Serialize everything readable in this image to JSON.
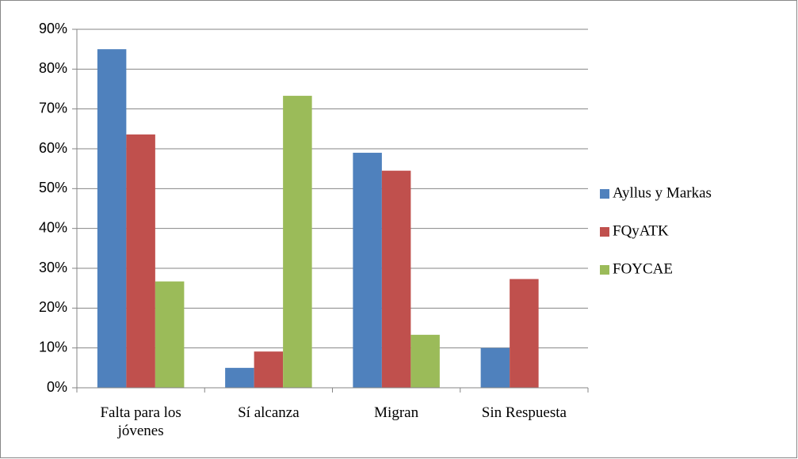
{
  "chart_data": {
    "type": "bar",
    "categories": [
      "Falta para los jóvenes",
      "Sí alcanza",
      "Migran",
      "Sin Respuesta"
    ],
    "series": [
      {
        "name": "Ayllus y Markas",
        "color": "#4f81bd",
        "values": [
          85,
          5,
          59,
          10
        ]
      },
      {
        "name": "FQyATK",
        "color": "#c0504d",
        "values": [
          63.6,
          9.1,
          54.5,
          27.3
        ]
      },
      {
        "name": "FOYCAE",
        "color": "#9bbb59",
        "values": [
          26.7,
          73.3,
          13.3,
          0
        ]
      }
    ],
    "ylim": [
      0,
      90
    ],
    "yticks": [
      {
        "value": 0,
        "label": "0%"
      },
      {
        "value": 10,
        "label": "10%"
      },
      {
        "value": 20,
        "label": "20%"
      },
      {
        "value": 30,
        "label": "30%"
      },
      {
        "value": 40,
        "label": "40%"
      },
      {
        "value": 50,
        "label": "50%"
      },
      {
        "value": 60,
        "label": "60%"
      },
      {
        "value": 70,
        "label": "70%"
      },
      {
        "value": 80,
        "label": "80%"
      },
      {
        "value": 90,
        "label": "90%"
      }
    ],
    "grid": true,
    "legend": "right"
  }
}
